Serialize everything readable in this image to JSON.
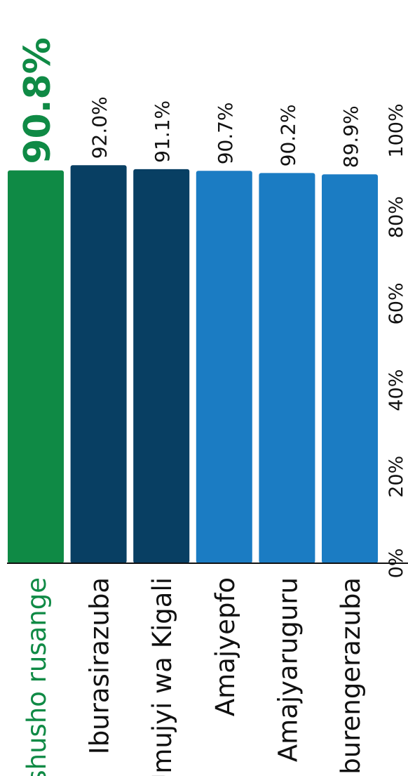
{
  "chart_data": {
    "type": "bar",
    "orientation": "vertical-text-rotated",
    "categories": [
      "Ishusho rusange",
      "Iburasirazuba",
      "Umujyi wa Kigali",
      "Amajyepfo",
      "Amajyaruguru",
      "Uburengerazuba"
    ],
    "values": [
      90.8,
      92.0,
      91.1,
      90.7,
      90.2,
      89.9
    ],
    "value_labels": [
      "90.8%",
      "92.0%",
      "91.1%",
      "90.7%",
      "90.2%",
      "89.9%"
    ],
    "ticks": [
      "0%",
      "20%",
      "40%",
      "60%",
      "80%",
      "100%"
    ],
    "tick_values": [
      0,
      20,
      40,
      60,
      80,
      100
    ],
    "ylim": [
      0,
      100
    ],
    "title": "",
    "xlabel": "",
    "ylabel": "",
    "grid": false,
    "highlight_index": 0,
    "colors": [
      "#0f8a45",
      "#083f63",
      "#083f63",
      "#1b7cc3",
      "#1b7cc3",
      "#1b7cc3"
    ],
    "highlight_text_color": "#0f8a45",
    "text_color": "#111111"
  }
}
